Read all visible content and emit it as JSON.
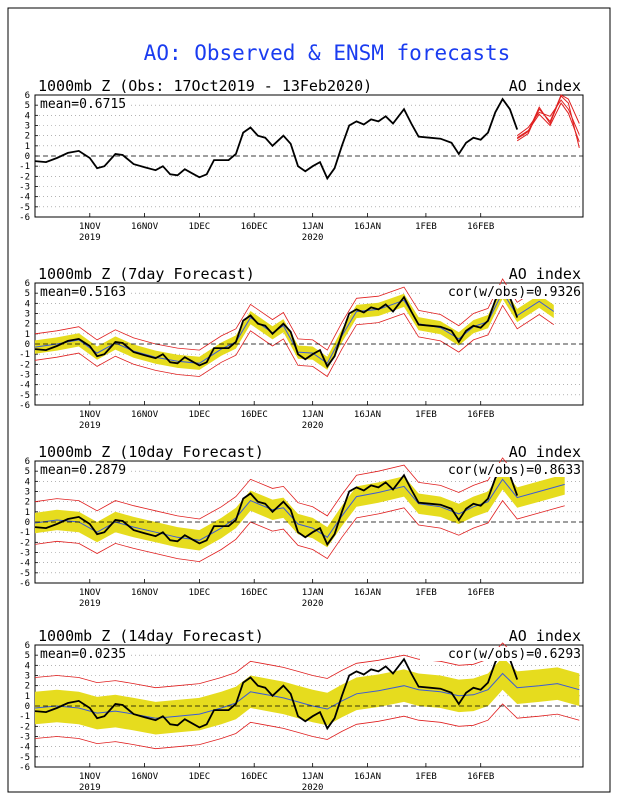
{
  "page": {
    "title": "AO: Observed & ENSM forecasts",
    "title_color": "#1a3cf0"
  },
  "colors": {
    "observed": "#000000",
    "ensemble_mean": "#3b5bd6",
    "spread_band": "#e6dc1e",
    "members": "#e02020",
    "zero_line": "#000000"
  },
  "time_axis": {
    "start_date": "2019-10-17",
    "end_date": "2020-02-29",
    "ticks": [
      {
        "label": "1NOV",
        "year": "2019"
      },
      {
        "label": "16NOV",
        "year": ""
      },
      {
        "label": "1DEC",
        "year": ""
      },
      {
        "label": "16DEC",
        "year": ""
      },
      {
        "label": "1JAN",
        "year": "2020"
      },
      {
        "label": "16JAN",
        "year": ""
      },
      {
        "label": "1FEB",
        "year": ""
      },
      {
        "label": "16FEB",
        "year": ""
      }
    ]
  },
  "chart_data": [
    {
      "type": "line",
      "title": "1000mb Z (Obs: 17Oct2019 - 13Feb2020)",
      "right_title": "AO index",
      "mean_label": "mean=0.6715",
      "cor_label": "",
      "ylim": [
        -6,
        6
      ],
      "yticks": [
        -6,
        -5,
        -4,
        -3,
        -2,
        -1,
        0,
        1,
        2,
        3,
        4,
        5,
        6
      ],
      "grid": "dotted horizontal",
      "series": [
        {
          "role": "observed",
          "points": [
            [
              "2019-10-17",
              -0.5
            ],
            [
              "2019-10-20",
              -0.6
            ],
            [
              "2019-10-23",
              -0.2
            ],
            [
              "2019-10-26",
              0.3
            ],
            [
              "2019-10-29",
              0.5
            ],
            [
              "2019-11-01",
              -0.2
            ],
            [
              "2019-11-03",
              -1.2
            ],
            [
              "2019-11-05",
              -1.0
            ],
            [
              "2019-11-08",
              0.2
            ],
            [
              "2019-11-10",
              0.1
            ],
            [
              "2019-11-13",
              -0.8
            ],
            [
              "2019-11-16",
              -1.1
            ],
            [
              "2019-11-19",
              -1.4
            ],
            [
              "2019-11-21",
              -1.0
            ],
            [
              "2019-11-23",
              -1.8
            ],
            [
              "2019-11-25",
              -1.9
            ],
            [
              "2019-11-27",
              -1.3
            ],
            [
              "2019-11-29",
              -1.7
            ],
            [
              "2019-12-01",
              -2.1
            ],
            [
              "2019-12-03",
              -1.8
            ],
            [
              "2019-12-05",
              -0.4
            ],
            [
              "2019-12-07",
              -0.4
            ],
            [
              "2019-12-09",
              -0.4
            ],
            [
              "2019-12-11",
              0.2
            ],
            [
              "2019-12-13",
              2.3
            ],
            [
              "2019-12-15",
              2.8
            ],
            [
              "2019-12-17",
              2.0
            ],
            [
              "2019-12-19",
              1.8
            ],
            [
              "2019-12-21",
              1.0
            ],
            [
              "2019-12-24",
              2.0
            ],
            [
              "2019-12-26",
              1.2
            ],
            [
              "2019-12-28",
              -1.0
            ],
            [
              "2019-12-30",
              -1.5
            ],
            [
              "2020-01-01",
              -1.0
            ],
            [
              "2020-01-03",
              -0.6
            ],
            [
              "2020-01-05",
              -2.2
            ],
            [
              "2020-01-07",
              -1.2
            ],
            [
              "2020-01-09",
              1.0
            ],
            [
              "2020-01-11",
              3.0
            ],
            [
              "2020-01-13",
              3.4
            ],
            [
              "2020-01-15",
              3.1
            ],
            [
              "2020-01-17",
              3.6
            ],
            [
              "2020-01-19",
              3.4
            ],
            [
              "2020-01-21",
              3.9
            ],
            [
              "2020-01-23",
              3.2
            ],
            [
              "2020-01-26",
              4.6
            ],
            [
              "2020-01-28",
              3.2
            ],
            [
              "2020-01-30",
              1.9
            ],
            [
              "2020-02-02",
              1.8
            ],
            [
              "2020-02-05",
              1.7
            ],
            [
              "2020-02-08",
              1.3
            ],
            [
              "2020-02-10",
              0.2
            ],
            [
              "2020-02-12",
              1.3
            ],
            [
              "2020-02-14",
              1.8
            ],
            [
              "2020-02-16",
              1.6
            ],
            [
              "2020-02-18",
              2.3
            ],
            [
              "2020-02-20",
              4.3
            ],
            [
              "2020-02-22",
              5.6
            ],
            [
              "2020-02-24",
              4.6
            ],
            [
              "2020-02-26",
              2.6
            ]
          ]
        }
      ],
      "forecast_members_offset_days": 0
    },
    {
      "type": "line",
      "title": "1000mb Z (7day Forecast)",
      "right_title": "AO index",
      "mean_label": "mean=0.5163",
      "cor_label": "cor(w/obs)=0.9326",
      "ylim": [
        -6,
        6
      ],
      "yticks": [
        -6,
        -5,
        -4,
        -3,
        -2,
        -1,
        0,
        1,
        2,
        3,
        4,
        5,
        6
      ],
      "grid": "dotted horizontal",
      "spread_inner": 0.65,
      "spread_outer": 1.3
    },
    {
      "type": "line",
      "title": "1000mb Z (10day Forecast)",
      "right_title": "AO index",
      "mean_label": "mean=0.2879",
      "cor_label": "cor(w/obs)=0.8633",
      "ylim": [
        -6,
        6
      ],
      "yticks": [
        -6,
        -5,
        -4,
        -3,
        -2,
        -1,
        0,
        1,
        2,
        3,
        4,
        5,
        6
      ],
      "grid": "dotted horizontal",
      "spread_inner": 1.0,
      "spread_outer": 2.1
    },
    {
      "type": "line",
      "title": "1000mb Z (14day Forecast)",
      "right_title": "AO index",
      "mean_label": "mean=0.0235",
      "cor_label": "cor(w/obs)=0.6293",
      "ylim": [
        -6,
        6
      ],
      "yticks": [
        -6,
        -5,
        -4,
        -3,
        -2,
        -1,
        0,
        1,
        2,
        3,
        4,
        5,
        6
      ],
      "grid": "dotted horizontal",
      "spread_inner": 1.6,
      "spread_outer": 3.0
    }
  ],
  "forecast_tails": {
    "obs_panel_members": [
      [
        [
          "2020-02-26",
          1.7
        ],
        [
          "2020-02-29",
          2.4
        ],
        [
          "2020-03-03",
          4.8
        ],
        [
          "2020-03-06",
          3.2
        ],
        [
          "2020-03-09",
          5.9
        ],
        [
          "2020-03-11",
          5.2
        ],
        [
          "2020-03-14",
          0.8
        ]
      ],
      [
        [
          "2020-02-26",
          2.0
        ],
        [
          "2020-02-29",
          2.8
        ],
        [
          "2020-03-03",
          4.3
        ],
        [
          "2020-03-06",
          3.9
        ],
        [
          "2020-03-09",
          5.5
        ],
        [
          "2020-03-11",
          4.6
        ],
        [
          "2020-03-14",
          2.1
        ]
      ],
      [
        [
          "2020-02-26",
          1.5
        ],
        [
          "2020-02-29",
          2.2
        ],
        [
          "2020-03-03",
          4.6
        ],
        [
          "2020-03-06",
          3.4
        ],
        [
          "2020-03-09",
          6.0
        ],
        [
          "2020-03-11",
          5.6
        ],
        [
          "2020-03-14",
          3.2
        ]
      ],
      [
        [
          "2020-02-26",
          1.8
        ],
        [
          "2020-02-29",
          2.5
        ],
        [
          "2020-03-03",
          4.1
        ],
        [
          "2020-03-06",
          3.0
        ],
        [
          "2020-03-09",
          5.2
        ],
        [
          "2020-03-11",
          4.2
        ],
        [
          "2020-03-14",
          1.4
        ]
      ]
    ]
  },
  "forecast_ensemble": {
    "7day": [
      [
        "2019-10-17",
        -0.3
      ],
      [
        "2019-10-23",
        0.0
      ],
      [
        "2019-10-29",
        0.4
      ],
      [
        "2019-11-03",
        -0.9
      ],
      [
        "2019-11-08",
        0.1
      ],
      [
        "2019-11-13",
        -0.7
      ],
      [
        "2019-11-19",
        -1.3
      ],
      [
        "2019-11-25",
        -1.7
      ],
      [
        "2019-12-01",
        -1.9
      ],
      [
        "2019-12-07",
        -0.5
      ],
      [
        "2019-12-11",
        0.2
      ],
      [
        "2019-12-15",
        2.6
      ],
      [
        "2019-12-21",
        1.1
      ],
      [
        "2019-12-24",
        1.8
      ],
      [
        "2019-12-28",
        -0.8
      ],
      [
        "2020-01-01",
        -0.9
      ],
      [
        "2020-01-05",
        -1.9
      ],
      [
        "2020-01-09",
        0.8
      ],
      [
        "2020-01-13",
        3.2
      ],
      [
        "2020-01-19",
        3.4
      ],
      [
        "2020-01-26",
        4.3
      ],
      [
        "2020-01-30",
        2.0
      ],
      [
        "2020-02-05",
        1.6
      ],
      [
        "2020-02-10",
        0.5
      ],
      [
        "2020-02-14",
        1.7
      ],
      [
        "2020-02-18",
        2.2
      ],
      [
        "2020-02-22",
        5.1
      ],
      [
        "2020-02-26",
        2.8
      ],
      [
        "2020-03-03",
        4.2
      ],
      [
        "2020-03-07",
        3.2
      ]
    ],
    "10day": [
      [
        "2019-10-17",
        -0.1
      ],
      [
        "2019-10-23",
        0.2
      ],
      [
        "2019-10-29",
        0.0
      ],
      [
        "2019-11-03",
        -1.0
      ],
      [
        "2019-11-08",
        0.0
      ],
      [
        "2019-11-13",
        -0.5
      ],
      [
        "2019-11-19",
        -1.0
      ],
      [
        "2019-11-25",
        -1.5
      ],
      [
        "2019-12-01",
        -1.8
      ],
      [
        "2019-12-07",
        -0.6
      ],
      [
        "2019-12-11",
        0.4
      ],
      [
        "2019-12-15",
        2.1
      ],
      [
        "2019-12-21",
        1.2
      ],
      [
        "2019-12-24",
        1.4
      ],
      [
        "2019-12-28",
        -0.2
      ],
      [
        "2020-01-01",
        -0.6
      ],
      [
        "2020-01-05",
        -1.5
      ],
      [
        "2020-01-09",
        0.6
      ],
      [
        "2020-01-13",
        2.5
      ],
      [
        "2020-01-19",
        2.9
      ],
      [
        "2020-01-26",
        3.5
      ],
      [
        "2020-01-30",
        1.8
      ],
      [
        "2020-02-05",
        1.5
      ],
      [
        "2020-02-10",
        0.8
      ],
      [
        "2020-02-14",
        1.5
      ],
      [
        "2020-02-18",
        2.0
      ],
      [
        "2020-02-22",
        4.2
      ],
      [
        "2020-02-26",
        2.4
      ],
      [
        "2020-03-03",
        3.0
      ],
      [
        "2020-03-10",
        3.7
      ]
    ],
    "14day": [
      [
        "2019-10-17",
        -0.2
      ],
      [
        "2019-10-23",
        0.0
      ],
      [
        "2019-10-29",
        -0.2
      ],
      [
        "2019-11-03",
        -0.7
      ],
      [
        "2019-11-08",
        -0.5
      ],
      [
        "2019-11-13",
        -0.8
      ],
      [
        "2019-11-19",
        -1.2
      ],
      [
        "2019-11-25",
        -1.0
      ],
      [
        "2019-12-01",
        -0.8
      ],
      [
        "2019-12-07",
        -0.2
      ],
      [
        "2019-12-11",
        0.3
      ],
      [
        "2019-12-15",
        1.4
      ],
      [
        "2019-12-21",
        1.0
      ],
      [
        "2019-12-24",
        0.8
      ],
      [
        "2019-12-28",
        0.4
      ],
      [
        "2020-01-01",
        0.0
      ],
      [
        "2020-01-05",
        -0.3
      ],
      [
        "2020-01-09",
        0.5
      ],
      [
        "2020-01-13",
        1.2
      ],
      [
        "2020-01-19",
        1.5
      ],
      [
        "2020-01-26",
        2.0
      ],
      [
        "2020-01-30",
        1.6
      ],
      [
        "2020-02-05",
        1.4
      ],
      [
        "2020-02-10",
        1.0
      ],
      [
        "2020-02-14",
        1.1
      ],
      [
        "2020-02-18",
        1.6
      ],
      [
        "2020-02-22",
        3.2
      ],
      [
        "2020-02-26",
        1.8
      ],
      [
        "2020-03-03",
        2.0
      ],
      [
        "2020-03-08",
        2.2
      ],
      [
        "2020-03-14",
        1.6
      ]
    ]
  }
}
